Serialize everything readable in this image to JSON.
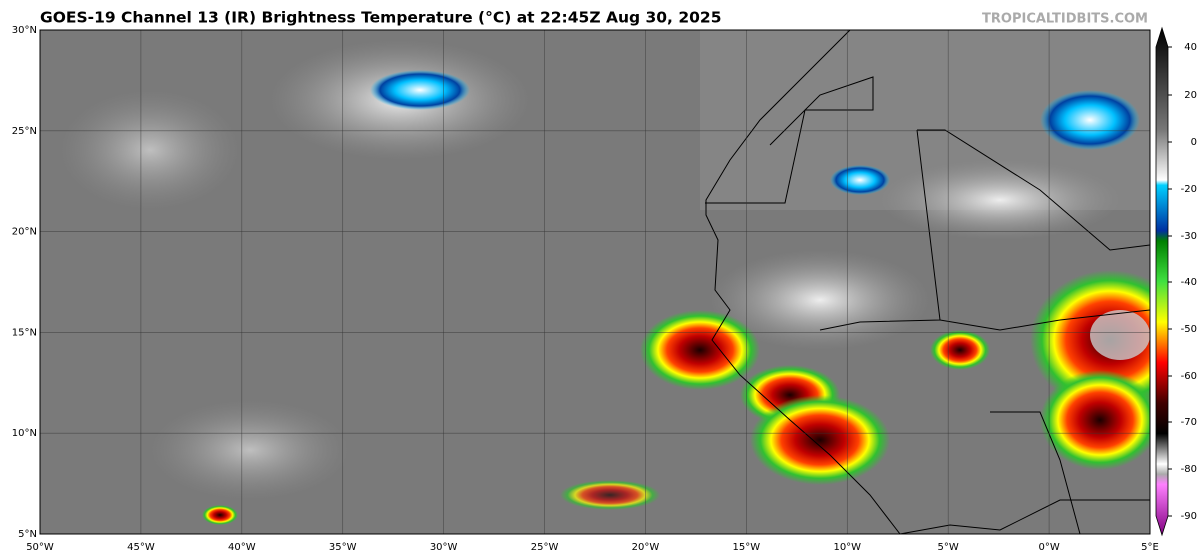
{
  "header": {
    "title": "GOES-19 Channel 13 (IR) Brightness Temperature (°C) at 22:45Z Aug 30, 2025",
    "watermark": "TROPICALTIDBITS.COM"
  },
  "map": {
    "lat_labels": [
      "30°N",
      "25°N",
      "20°N",
      "15°N",
      "10°N",
      "5°N"
    ],
    "lon_labels": [
      "50°W",
      "45°W",
      "40°W",
      "35°W",
      "30°W",
      "25°W",
      "20°W",
      "15°W",
      "10°W",
      "5°W",
      "0°W",
      "5°E"
    ]
  },
  "colorbar": {
    "ticks": [
      40,
      20,
      0,
      -20,
      -30,
      -40,
      -50,
      -60,
      -70,
      -80,
      -90
    ]
  }
}
